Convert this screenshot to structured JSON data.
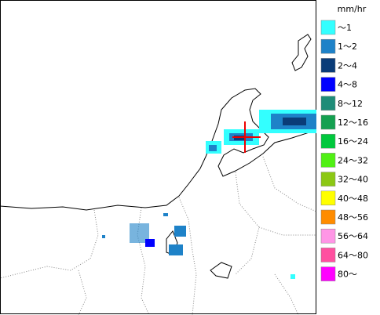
{
  "legend": {
    "unit": "mm/hr",
    "items": [
      {
        "label": "～1",
        "color": "#33ffff"
      },
      {
        "label": "1～2",
        "color": "#1e82c8"
      },
      {
        "label": "2～4",
        "color": "#0a3c78"
      },
      {
        "label": "4～8",
        "color": "#0000ff"
      },
      {
        "label": "8～12",
        "color": "#1e8c78"
      },
      {
        "label": "12～16",
        "color": "#14a050"
      },
      {
        "label": "16～24",
        "color": "#00c83c"
      },
      {
        "label": "24～32",
        "color": "#50f014"
      },
      {
        "label": "32～40",
        "color": "#8cc814"
      },
      {
        "label": "40～48",
        "color": "#ffff00"
      },
      {
        "label": "48～56",
        "color": "#ff8c00"
      },
      {
        "label": "56～64",
        "color": "#ff96e6"
      },
      {
        "label": "64～80",
        "color": "#ff50a0"
      },
      {
        "label": "80～",
        "color": "#ff00ff"
      }
    ]
  }
}
